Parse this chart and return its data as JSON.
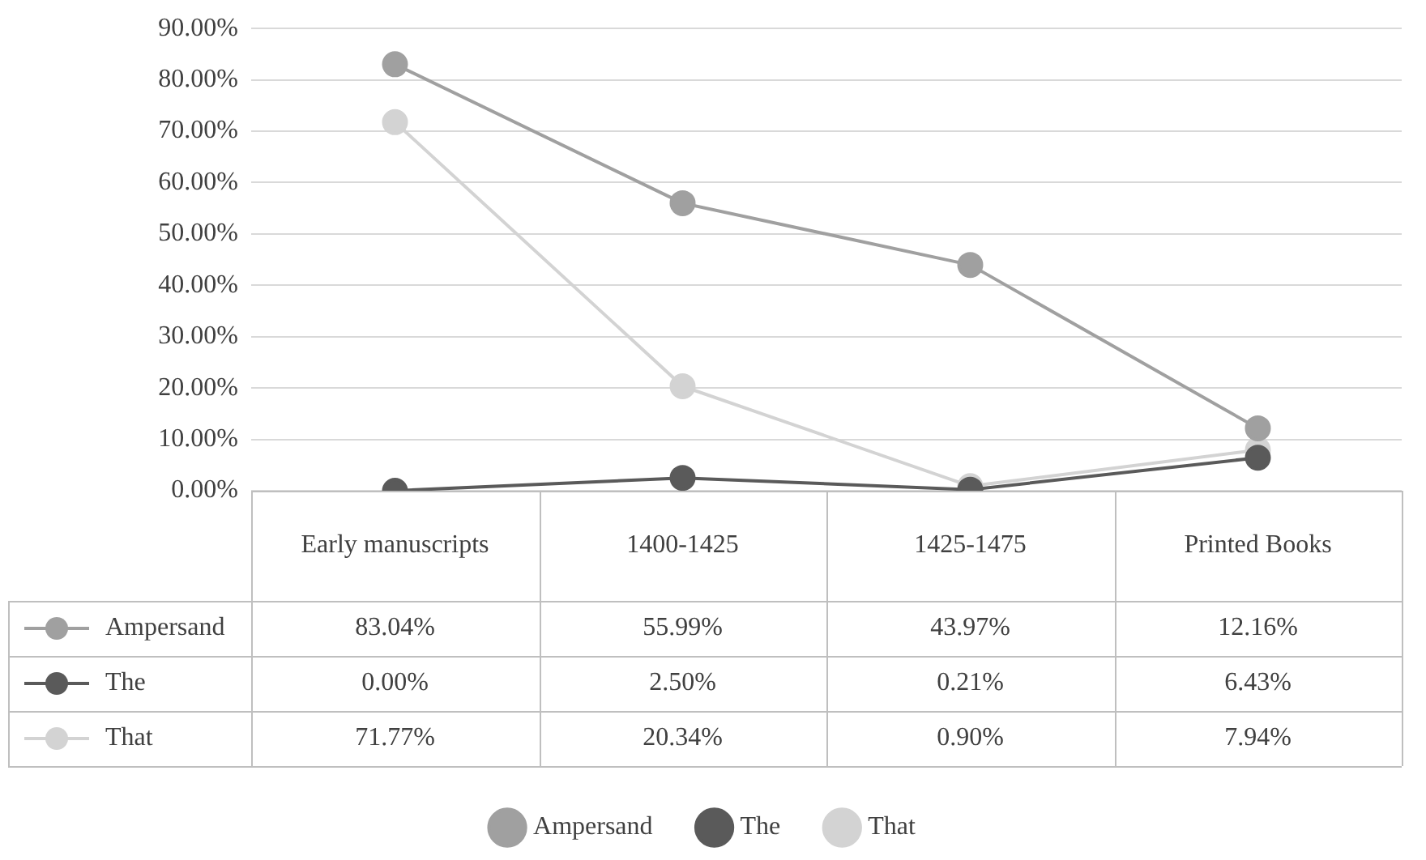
{
  "chart_data": {
    "type": "line",
    "categories": [
      "Early manuscripts",
      "1400-1425",
      "1425-1475",
      "Printed Books"
    ],
    "series": [
      {
        "name": "Ampersand",
        "color": "#a0a0a0",
        "values": [
          83.04,
          55.99,
          43.97,
          12.16
        ],
        "value_labels": [
          "83.04%",
          "55.99%",
          "43.97%",
          "12.16%"
        ]
      },
      {
        "name": "The",
        "color": "#5a5a5a",
        "values": [
          0,
          2.5,
          0.21,
          6.43
        ],
        "value_labels": [
          "0.00%",
          "2.50%",
          "0.21%",
          "6.43%"
        ]
      },
      {
        "name": "That",
        "color": "#d3d3d3",
        "values": [
          71.77,
          20.34,
          0.9,
          7.94
        ],
        "value_labels": [
          "71.77%",
          "20.34%",
          "0.90%",
          "7.94%"
        ]
      }
    ],
    "ylim": [
      0,
      90
    ],
    "yticks": [
      {
        "value": 0,
        "label": "0.00%"
      },
      {
        "value": 10,
        "label": "10.00%"
      },
      {
        "value": 20,
        "label": "20.00%"
      },
      {
        "value": 30,
        "label": "30.00%"
      },
      {
        "value": 40,
        "label": "40.00%"
      },
      {
        "value": 50,
        "label": "50.00%"
      },
      {
        "value": 60,
        "label": "60.00%"
      },
      {
        "value": 70,
        "label": "70.00%"
      },
      {
        "value": 80,
        "label": "80.00%"
      },
      {
        "value": 90,
        "label": "90.00%"
      }
    ],
    "grid": "y",
    "legend": "bottom",
    "marker": "circle",
    "line_style": "solid"
  }
}
